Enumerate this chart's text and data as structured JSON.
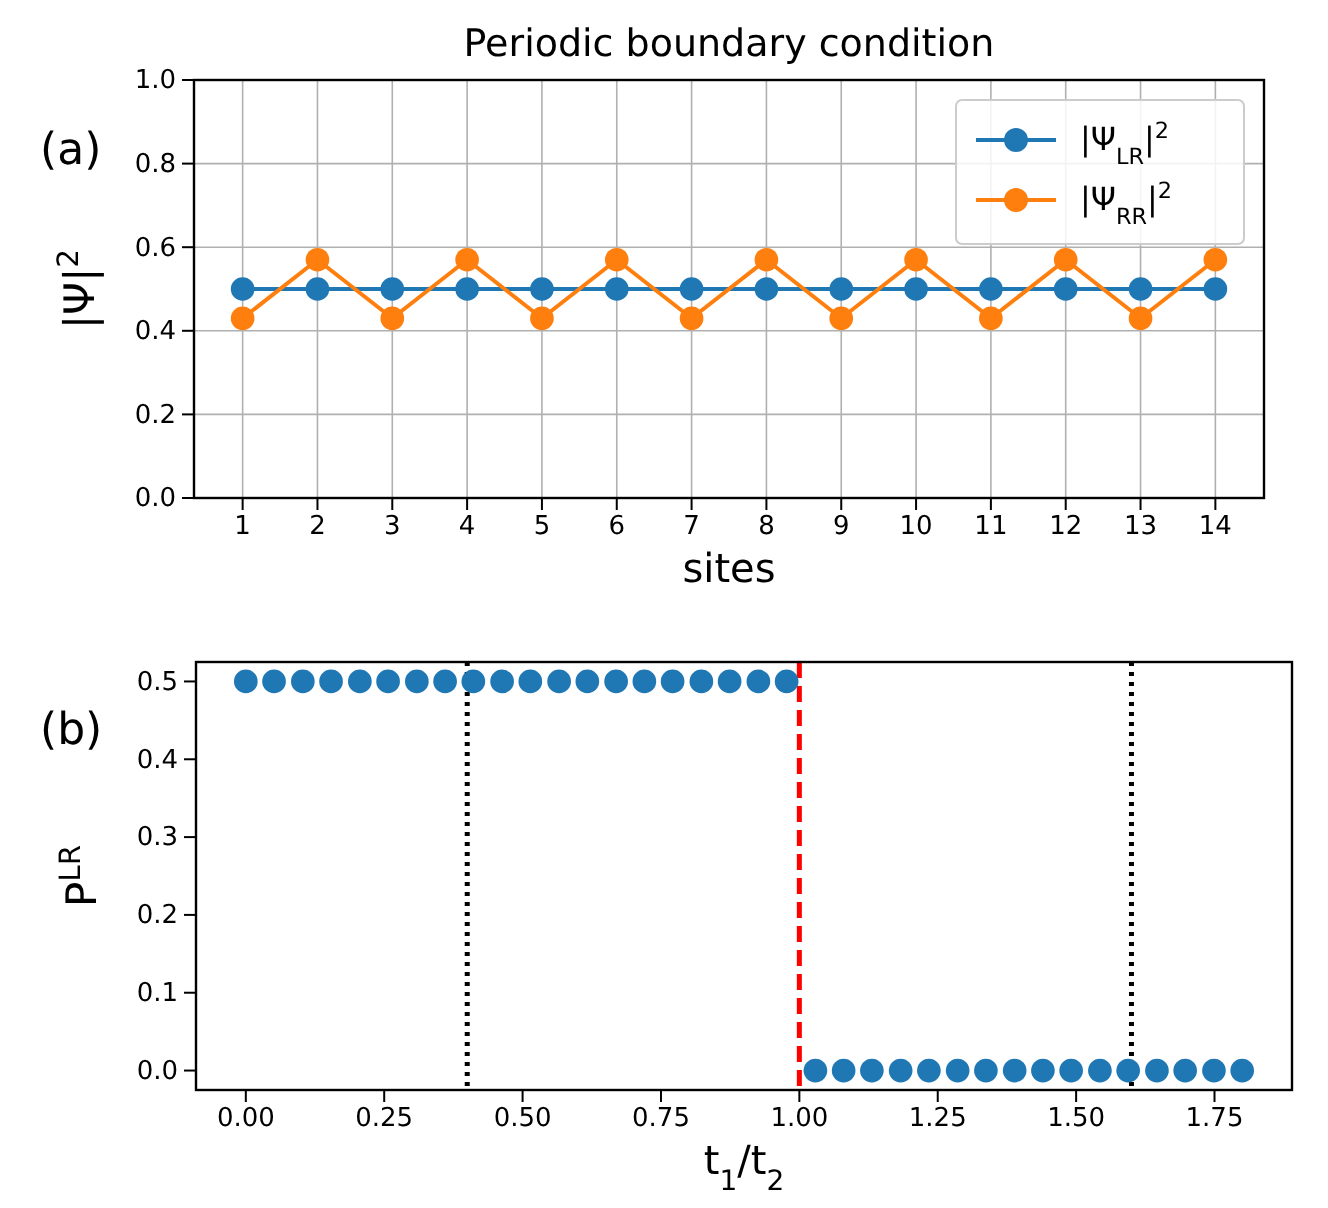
{
  "chart_data": [
    {
      "type": "line",
      "title": "Periodic boundary condition",
      "xlabel": "sites",
      "ylabel": "|Ψ|$^{2}$",
      "annotations": [
        "(a)"
      ],
      "x": [
        1,
        2,
        3,
        4,
        5,
        6,
        7,
        8,
        9,
        10,
        11,
        12,
        13,
        14
      ],
      "series": [
        {
          "name": "|Ψ$_{LR}$|$^{2}$",
          "color": "#1f77b4",
          "values": [
            0.5,
            0.5,
            0.5,
            0.5,
            0.5,
            0.5,
            0.5,
            0.5,
            0.5,
            0.5,
            0.5,
            0.5,
            0.5,
            0.5
          ]
        },
        {
          "name": "|Ψ$_{RR}$|$^{2}$",
          "color": "#ff7f0e",
          "values": [
            0.43,
            0.57,
            0.43,
            0.57,
            0.43,
            0.57,
            0.43,
            0.57,
            0.43,
            0.57,
            0.43,
            0.57,
            0.43,
            0.57
          ]
        }
      ],
      "xlim": [
        0.35,
        14.65
      ],
      "xticks": [
        1,
        2,
        3,
        4,
        5,
        6,
        7,
        8,
        9,
        10,
        11,
        12,
        13,
        14
      ],
      "ylim": [
        0,
        1
      ],
      "yticks": [
        {
          "value": 0,
          "label": "0.0"
        },
        {
          "value": 0.2,
          "label": "0.2"
        },
        {
          "value": 0.4,
          "label": "0.4"
        },
        {
          "value": 0.6,
          "label": "0.6"
        },
        {
          "value": 0.8,
          "label": "0.8"
        },
        {
          "value": 1,
          "label": "1.0"
        }
      ],
      "grid": true,
      "legend": "top right",
      "marker": "circle",
      "line_style": "solid"
    },
    {
      "type": "scatter",
      "xlabel": "t$_{1}$/t$_{2}$",
      "ylabel": "P$^{LR}$",
      "annotations": [
        "(b)"
      ],
      "x": [
        0,
        0.051,
        0.103,
        0.154,
        0.206,
        0.257,
        0.309,
        0.36,
        0.411,
        0.463,
        0.514,
        0.566,
        0.617,
        0.669,
        0.72,
        0.771,
        0.823,
        0.874,
        0.926,
        0.977,
        1.029,
        1.08,
        1.131,
        1.183,
        1.234,
        1.286,
        1.337,
        1.389,
        1.44,
        1.491,
        1.543,
        1.594,
        1.646,
        1.697,
        1.749,
        1.8
      ],
      "series": [
        {
          "color": "#1f77b4",
          "values": [
            0.5,
            0.5,
            0.5,
            0.5,
            0.5,
            0.5,
            0.5,
            0.5,
            0.5,
            0.5,
            0.5,
            0.5,
            0.5,
            0.5,
            0.5,
            0.5,
            0.5,
            0.5,
            0.5,
            0.5,
            0,
            0,
            0,
            0,
            0,
            0,
            0,
            0,
            0,
            0,
            0,
            0,
            0,
            0,
            0,
            0
          ]
        }
      ],
      "xlim": [
        -0.09,
        1.89
      ],
      "xticks": [
        {
          "value": 0,
          "label": "0.00"
        },
        {
          "value": 0.25,
          "label": "0.25"
        },
        {
          "value": 0.5,
          "label": "0.50"
        },
        {
          "value": 0.75,
          "label": "0.75"
        },
        {
          "value": 1,
          "label": "1.00"
        },
        {
          "value": 1.25,
          "label": "1.25"
        },
        {
          "value": 1.5,
          "label": "1.50"
        },
        {
          "value": 1.75,
          "label": "1.75"
        }
      ],
      "ylim": [
        -0.025,
        0.525
      ],
      "yticks": [
        {
          "value": 0,
          "label": "0.0"
        },
        {
          "value": 0.1,
          "label": "0.1"
        },
        {
          "value": 0.2,
          "label": "0.2"
        },
        {
          "value": 0.3,
          "label": "0.3"
        },
        {
          "value": 0.4,
          "label": "0.4"
        },
        {
          "value": 0.5,
          "label": "0.5"
        }
      ],
      "marker": "circle",
      "ref_lines": [
        {
          "axis": "x",
          "value": 0.4,
          "color": "#000000",
          "line_style": "dotted"
        },
        {
          "axis": "x",
          "value": 1,
          "color": "#ff0000",
          "line_style": "dashed"
        },
        {
          "axis": "x",
          "value": 1.6,
          "color": "#000000",
          "line_style": "dotted"
        }
      ]
    }
  ]
}
